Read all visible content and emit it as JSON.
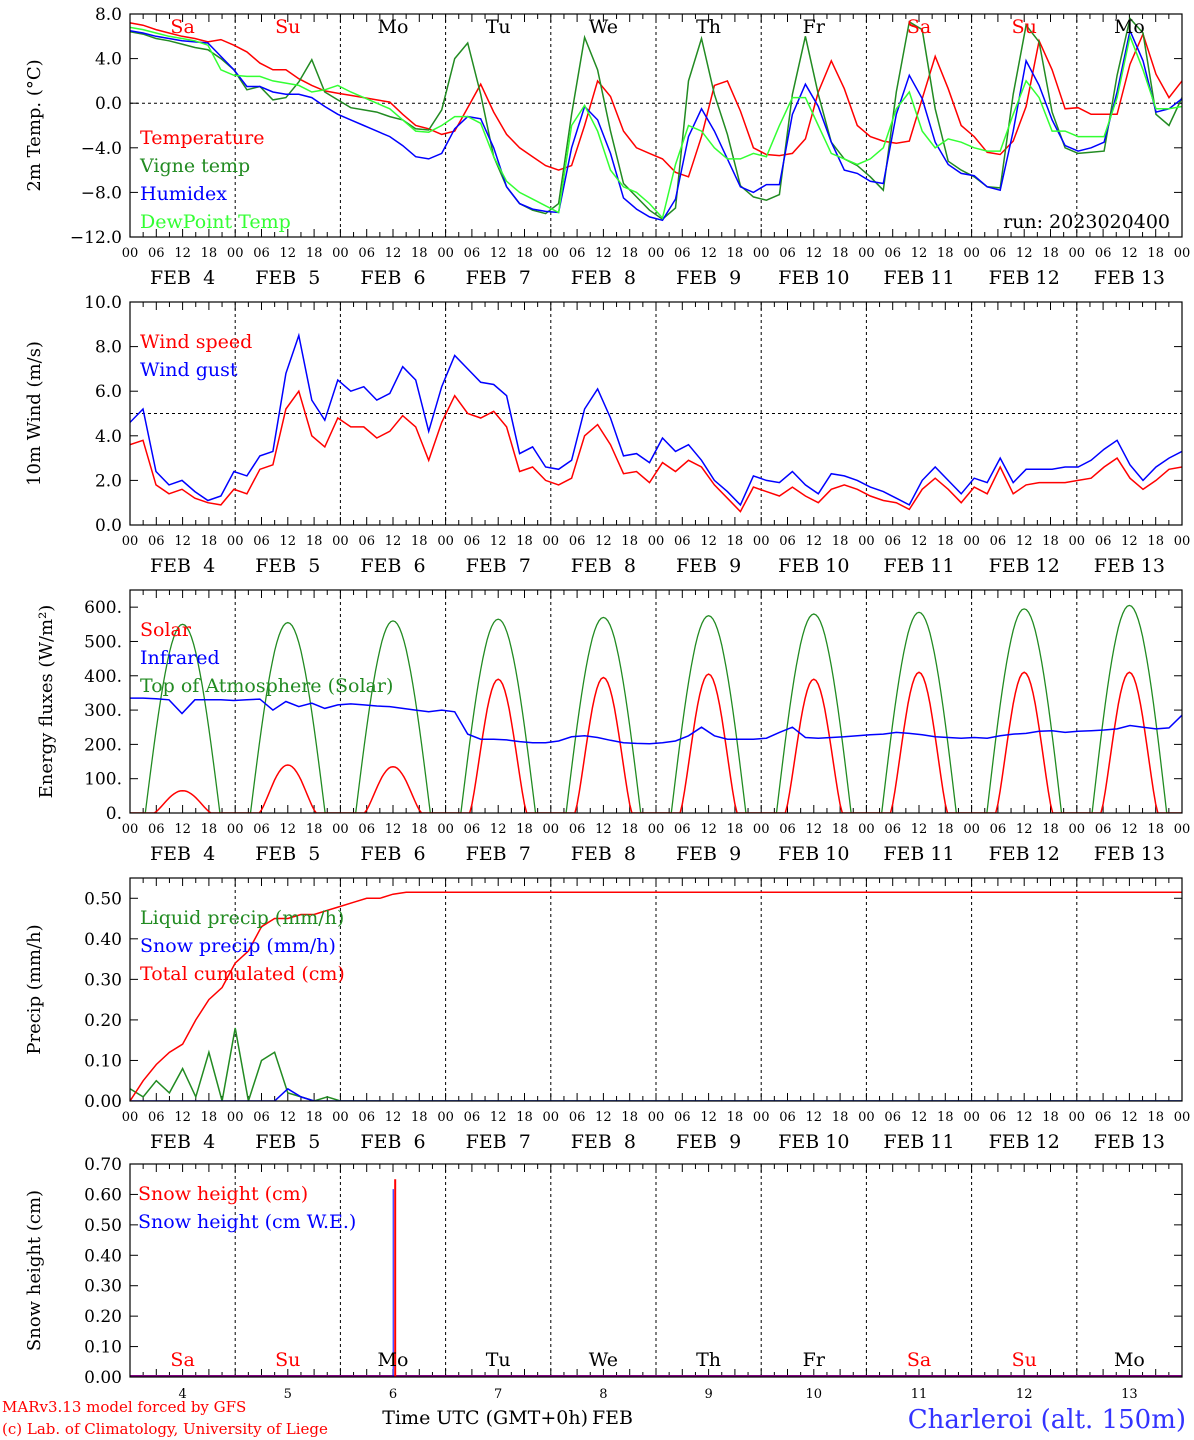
{
  "chart_data": [
    {
      "type": "line",
      "ylabel": "2m Temp. (°C)",
      "ylim": [
        -12,
        8
      ],
      "yticks": [
        8,
        4,
        0,
        -4,
        -8,
        -12
      ],
      "ytick_labels": [
        "8.0",
        "4.0",
        "0.0",
        "−4.0",
        "−8.0",
        "−12.0"
      ],
      "ref_line": 0,
      "weekdays": [
        "Sa",
        "Su",
        "Mo",
        "Tu",
        "We",
        "Th",
        "Fr",
        "Sa",
        "Su",
        "Mo"
      ],
      "run_label": "run: 2023020400",
      "series": [
        {
          "name": "Temperature",
          "color": "#ff0000",
          "values": [
            7.2,
            7.0,
            6.6,
            6.3,
            6.0,
            5.8,
            5.5,
            5.7,
            5.2,
            4.6,
            3.6,
            3.0,
            3.0,
            2.2,
            1.6,
            1.1,
            0.9,
            0.7,
            0.5,
            0.3,
            0.1,
            -1.0,
            -2.0,
            -2.3,
            -2.8,
            -2.5,
            -0.4,
            1.7,
            -0.8,
            -2.8,
            -4.0,
            -4.8,
            -5.6,
            -6.0,
            -5.6,
            -2.0,
            2.0,
            0.6,
            -2.5,
            -4.0,
            -4.5,
            -5.0,
            -6.2,
            -6.6,
            -3.0,
            1.6,
            2.0,
            -0.7,
            -4.0,
            -4.6,
            -4.7,
            -4.5,
            -3.2,
            1.0,
            3.8,
            1.3,
            -2.0,
            -3.0,
            -3.4,
            -3.6,
            -3.4,
            0.4,
            4.2,
            1.3,
            -2.0,
            -3.0,
            -4.4,
            -4.6,
            -3.4,
            -0.3,
            5.6,
            3.0,
            -0.5,
            -0.4,
            -1.0,
            -1.0,
            -1.0,
            3.5,
            6.2,
            2.6,
            0.5,
            2.0
          ]
        },
        {
          "name": "Vigne temp",
          "color": "#228b22",
          "values": [
            6.4,
            6.2,
            5.8,
            5.6,
            5.3,
            5.0,
            4.8,
            4.0,
            3.0,
            1.2,
            1.5,
            0.3,
            0.5,
            1.9,
            3.9,
            1.0,
            0.3,
            -0.4,
            -0.6,
            -0.8,
            -1.2,
            -1.5,
            -2.3,
            -2.4,
            -0.6,
            4.0,
            5.4,
            0.8,
            -4.8,
            -7.5,
            -9.0,
            -9.6,
            -9.9,
            -9.0,
            -1.0,
            5.9,
            3.0,
            -2.5,
            -7.2,
            -8.4,
            -9.6,
            -10.4,
            -9.4,
            2.0,
            5.8,
            0.8,
            -2.8,
            -7.4,
            -8.4,
            -8.7,
            -8.2,
            0.8,
            6.0,
            0.8,
            -3.5,
            -5.0,
            -5.6,
            -6.6,
            -7.8,
            1.0,
            7.3,
            6.6,
            -0.5,
            -5.2,
            -6.0,
            -6.6,
            -7.5,
            -7.6,
            0.8,
            7.0,
            5.5,
            -0.8,
            -4.0,
            -4.5,
            -4.4,
            -4.3,
            2.5,
            7.6,
            6.3,
            -1.0,
            -2.0,
            0.5
          ]
        },
        {
          "name": "Humidex",
          "color": "#0000ff",
          "values": [
            6.5,
            6.3,
            6.0,
            5.8,
            5.6,
            5.5,
            5.4,
            4.2,
            3.0,
            1.5,
            1.5,
            1.0,
            0.8,
            0.8,
            0.5,
            -0.3,
            -1.0,
            -1.5,
            -2.0,
            -2.5,
            -3.0,
            -3.8,
            -4.8,
            -5.0,
            -4.5,
            -2.3,
            -1.2,
            -1.4,
            -4.0,
            -7.5,
            -9.0,
            -9.5,
            -9.7,
            -9.8,
            -4.0,
            -0.3,
            -1.5,
            -4.5,
            -8.5,
            -9.5,
            -10.2,
            -10.5,
            -8.6,
            -3.0,
            -0.5,
            -2.5,
            -5.0,
            -7.5,
            -8.0,
            -7.3,
            -7.3,
            -1.0,
            1.7,
            -0.3,
            -3.5,
            -6.0,
            -6.3,
            -7.0,
            -7.2,
            -1.0,
            2.5,
            0.4,
            -3.5,
            -5.5,
            -6.3,
            -6.5,
            -7.5,
            -7.8,
            -2.5,
            3.8,
            1.6,
            -1.5,
            -3.8,
            -4.3,
            -4.0,
            -3.5,
            1.0,
            6.5,
            3.8,
            -0.8,
            -0.5,
            0.4
          ]
        },
        {
          "name": "DewPoint Temp",
          "color": "#33ff33",
          "values": [
            6.8,
            6.6,
            6.3,
            6.0,
            5.8,
            5.6,
            5.2,
            3.0,
            2.5,
            2.4,
            2.4,
            2.0,
            1.8,
            1.6,
            1.0,
            1.2,
            1.6,
            1.0,
            0.5,
            0.0,
            -0.5,
            -1.5,
            -2.5,
            -2.6,
            -2.0,
            -1.2,
            -1.2,
            -1.8,
            -4.8,
            -7.0,
            -8.0,
            -8.6,
            -9.2,
            -9.8,
            -2.0,
            -0.2,
            -2.5,
            -6.0,
            -7.5,
            -8.0,
            -9.0,
            -10.3,
            -5.5,
            -2.0,
            -2.5,
            -4.0,
            -5.0,
            -5.0,
            -4.5,
            -4.8,
            -2.0,
            0.5,
            0.5,
            -2.0,
            -4.5,
            -5.0,
            -5.5,
            -5.0,
            -4.0,
            -0.5,
            1.0,
            -2.5,
            -4.0,
            -3.2,
            -3.5,
            -4.0,
            -4.3,
            -4.3,
            -1.0,
            2.0,
            0.5,
            -2.5,
            -2.5,
            -3.0,
            -3.0,
            -3.0,
            0.5,
            6.0,
            3.0,
            -0.5,
            -0.5,
            -0.3
          ]
        }
      ]
    },
    {
      "type": "line",
      "ylabel": "10m Wind (m/s)",
      "ylim": [
        0,
        10
      ],
      "yticks": [
        0,
        2,
        4,
        6,
        8,
        10
      ],
      "ytick_labels": [
        "0.0",
        "2.0",
        "4.0",
        "6.0",
        "8.0",
        "10.0"
      ],
      "ref_line": 5,
      "series": [
        {
          "name": "Wind speed",
          "color": "#ff0000",
          "values": [
            3.6,
            3.8,
            1.8,
            1.4,
            1.6,
            1.2,
            1.0,
            0.9,
            1.6,
            1.4,
            2.5,
            2.7,
            5.2,
            6.0,
            4.0,
            3.5,
            4.8,
            4.4,
            4.4,
            3.9,
            4.2,
            4.9,
            4.4,
            2.9,
            4.6,
            5.8,
            5.0,
            4.8,
            5.1,
            4.4,
            2.4,
            2.6,
            2.0,
            1.8,
            2.1,
            4.0,
            4.5,
            3.6,
            2.3,
            2.4,
            1.9,
            2.8,
            2.4,
            2.9,
            2.6,
            1.8,
            1.2,
            0.6,
            1.7,
            1.5,
            1.3,
            1.7,
            1.3,
            1.0,
            1.6,
            1.8,
            1.6,
            1.3,
            1.1,
            1.0,
            0.7,
            1.6,
            2.1,
            1.6,
            1.0,
            1.7,
            1.4,
            2.6,
            1.4,
            1.8,
            1.9,
            1.9,
            1.9,
            2.0,
            2.1,
            2.6,
            3.0,
            2.1,
            1.6,
            2.0,
            2.5,
            2.6
          ]
        },
        {
          "name": "Wind gust",
          "color": "#0000ff",
          "values": [
            4.6,
            5.2,
            2.4,
            1.8,
            2.0,
            1.5,
            1.1,
            1.3,
            2.4,
            2.2,
            3.1,
            3.3,
            6.8,
            8.5,
            5.6,
            4.7,
            6.5,
            6.0,
            6.2,
            5.6,
            5.9,
            7.1,
            6.5,
            4.2,
            6.2,
            7.6,
            7.0,
            6.4,
            6.3,
            5.8,
            3.2,
            3.5,
            2.6,
            2.5,
            2.9,
            5.2,
            6.1,
            4.8,
            3.1,
            3.2,
            2.8,
            3.9,
            3.3,
            3.6,
            2.9,
            2.0,
            1.5,
            0.9,
            2.2,
            2.0,
            1.9,
            2.4,
            1.8,
            1.4,
            2.3,
            2.2,
            2.0,
            1.7,
            1.5,
            1.2,
            0.9,
            2.0,
            2.6,
            2.0,
            1.4,
            2.1,
            1.9,
            3.0,
            1.9,
            2.5,
            2.5,
            2.5,
            2.6,
            2.6,
            2.9,
            3.4,
            3.8,
            2.7,
            2.0,
            2.6,
            3.0,
            3.3
          ]
        }
      ]
    },
    {
      "type": "line",
      "ylabel": "Energy fluxes (W/m²)",
      "ylim": [
        0,
        650
      ],
      "yticks": [
        0,
        100,
        200,
        300,
        400,
        500,
        600
      ],
      "ytick_labels": [
        "0.",
        "100.",
        "200.",
        "300.",
        "400.",
        "500.",
        "600."
      ],
      "diurnal_peaks": {
        "Top of Atmosphere (Solar)": [
          550,
          555,
          560,
          565,
          570,
          575,
          580,
          585,
          595,
          605
        ],
        "Solar": [
          65,
          140,
          135,
          390,
          395,
          405,
          390,
          410,
          410,
          410
        ]
      },
      "series": [
        {
          "name": "Solar",
          "color": "#ff0000",
          "values": []
        },
        {
          "name": "Infrared",
          "color": "#0000ff",
          "values": [
            335,
            335,
            333,
            330,
            290,
            330,
            330,
            330,
            328,
            330,
            332,
            300,
            325,
            310,
            320,
            305,
            315,
            318,
            315,
            312,
            310,
            305,
            300,
            295,
            300,
            295,
            230,
            215,
            215,
            213,
            208,
            205,
            205,
            210,
            222,
            225,
            220,
            212,
            205,
            203,
            202,
            205,
            210,
            225,
            250,
            225,
            215,
            215,
            215,
            218,
            235,
            250,
            220,
            218,
            220,
            222,
            225,
            228,
            230,
            235,
            232,
            228,
            222,
            220,
            218,
            220,
            218,
            225,
            230,
            232,
            238,
            240,
            235,
            238,
            240,
            242,
            245,
            255,
            250,
            245,
            248,
            285
          ]
        },
        {
          "name": "Top of Atmosphere (Solar)",
          "color": "#228b22",
          "values": []
        }
      ]
    },
    {
      "type": "line",
      "ylabel": "Precip (mm/h)",
      "ylim": [
        0,
        0.55
      ],
      "yticks": [
        0,
        0.1,
        0.2,
        0.3,
        0.4,
        0.5
      ],
      "ytick_labels": [
        "0.00",
        "0.10",
        "0.20",
        "0.30",
        "0.40",
        "0.50"
      ],
      "series": [
        {
          "name": "Liquid precip (mm/h)",
          "color": "#228b22",
          "values": [
            0.03,
            0.01,
            0.05,
            0.02,
            0.08,
            0.01,
            0.12,
            0.0,
            0.18,
            0.0,
            0.1,
            0.12,
            0.02,
            0.01,
            0.0,
            0.01,
            0.0,
            0.0,
            0.0,
            0.0,
            0.0,
            0.0,
            0.0,
            0.0,
            0.0,
            0.0,
            0.0,
            0.0,
            0.0,
            0.0,
            0.0,
            0.0,
            0.0,
            0.0,
            0.0,
            0.0,
            0.0,
            0.0,
            0.0,
            0.0,
            0.0,
            0.0,
            0.0,
            0.0,
            0.0,
            0.0,
            0.0,
            0.0,
            0.0,
            0.0,
            0.0,
            0.0,
            0.0,
            0.0,
            0.0,
            0.0,
            0.0,
            0.0,
            0.0,
            0.0,
            0.0,
            0.0,
            0.0,
            0.0,
            0.0,
            0.0,
            0.0,
            0.0,
            0.0,
            0.0,
            0.0,
            0.0,
            0.0,
            0.0,
            0.0,
            0.0,
            0.0,
            0.0,
            0.0,
            0.0,
            0.0
          ]
        },
        {
          "name": "Snow precip (mm/h)",
          "color": "#0000ff",
          "values": [
            0.0,
            0.0,
            0.0,
            0.0,
            0.0,
            0.0,
            0.0,
            0.0,
            0.0,
            0.0,
            0.0,
            0.0,
            0.03,
            0.01,
            0.0,
            0.0,
            0.0,
            0.0,
            0.0,
            0.0,
            0.0,
            0.0,
            0.0,
            0.0,
            0.0,
            0.0,
            0.0,
            0.0,
            0.0,
            0.0,
            0.0,
            0.0,
            0.0,
            0.0,
            0.0,
            0.0,
            0.0,
            0.0,
            0.0,
            0.0,
            0.0,
            0.0,
            0.0,
            0.0,
            0.0,
            0.0,
            0.0,
            0.0,
            0.0,
            0.0,
            0.0,
            0.0,
            0.0,
            0.0,
            0.0,
            0.0,
            0.0,
            0.0,
            0.0,
            0.0,
            0.0,
            0.0,
            0.0,
            0.0,
            0.0,
            0.0,
            0.0,
            0.0,
            0.0,
            0.0,
            0.0,
            0.0,
            0.0,
            0.0,
            0.0,
            0.0,
            0.0,
            0.0,
            0.0,
            0.0,
            0.0
          ]
        },
        {
          "name": "Total cumulated (cm)",
          "color": "#ff0000",
          "values": [
            0.0,
            0.05,
            0.09,
            0.12,
            0.14,
            0.2,
            0.25,
            0.28,
            0.34,
            0.37,
            0.43,
            0.45,
            0.45,
            0.46,
            0.46,
            0.47,
            0.48,
            0.49,
            0.5,
            0.5,
            0.51,
            0.515,
            0.515,
            0.515,
            0.515,
            0.515,
            0.515,
            0.515,
            0.515,
            0.515,
            0.515,
            0.515,
            0.515,
            0.515,
            0.515,
            0.515,
            0.515,
            0.515,
            0.515,
            0.515,
            0.515,
            0.515,
            0.515,
            0.515,
            0.515,
            0.515,
            0.515,
            0.515,
            0.515,
            0.515,
            0.515,
            0.515,
            0.515,
            0.515,
            0.515,
            0.515,
            0.515,
            0.515,
            0.515,
            0.515,
            0.515,
            0.515,
            0.515,
            0.515,
            0.515,
            0.515,
            0.515,
            0.515,
            0.515,
            0.515,
            0.515,
            0.515,
            0.515,
            0.515,
            0.515,
            0.515,
            0.515,
            0.515,
            0.515,
            0.515,
            0.515
          ]
        }
      ]
    },
    {
      "type": "line",
      "ylabel": "Snow height (cm)",
      "ylim": [
        0,
        0.7
      ],
      "yticks": [
        0,
        0.1,
        0.2,
        0.3,
        0.4,
        0.5,
        0.6,
        0.7
      ],
      "ytick_labels": [
        "0.00",
        "0.10",
        "0.20",
        "0.30",
        "0.40",
        "0.50",
        "0.60",
        "0.70"
      ],
      "spike": {
        "x_hours": 60.5,
        "value": 0.65
      },
      "weekdays": [
        "Sa",
        "Su",
        "Mo",
        "Tu",
        "We",
        "Th",
        "Fr",
        "Sa",
        "Su",
        "Mo"
      ],
      "day_numbers": [
        "4",
        "5",
        "6",
        "7",
        "8",
        "9",
        "10",
        "11",
        "12",
        "13"
      ],
      "series": [
        {
          "name": "Snow height (cm)",
          "color": "#ff0000",
          "values": []
        },
        {
          "name": "Snow height (cm W.E.)",
          "color": "#0000ff",
          "values": []
        }
      ]
    }
  ],
  "axis": {
    "hour_labels": [
      "00",
      "06",
      "12",
      "18"
    ],
    "final_hour": "00",
    "day_labels": [
      "FEB  4",
      "FEB  5",
      "FEB  6",
      "FEB  7",
      "FEB  8",
      "FEB  9",
      "FEB 10",
      "FEB 11",
      "FEB 12",
      "FEB 13"
    ],
    "xlabel": "Time UTC (GMT+0h)",
    "month": "FEB"
  },
  "footer": {
    "model": "MARv3.13 model forced by GFS",
    "copyright": "(c) Lab. of Climatology, University of Liege",
    "station": "Charleroi (alt. 150m)"
  },
  "colors": {
    "weekend": "#ff0000",
    "weekday": "#000000",
    "station": "#3333ff"
  }
}
